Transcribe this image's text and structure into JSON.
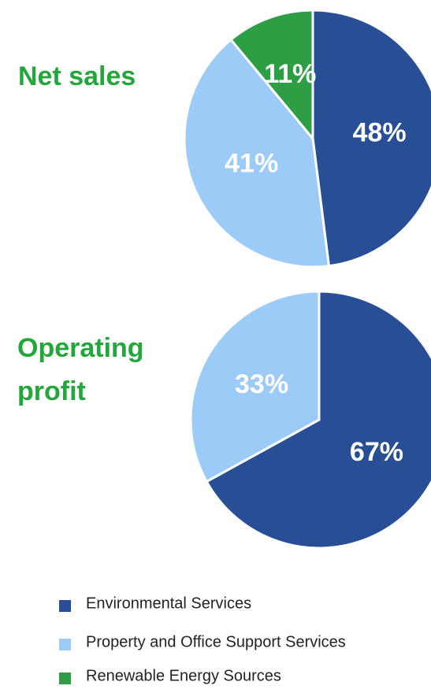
{
  "chart_data": [
    {
      "type": "pie",
      "title": "Net sales",
      "categories": [
        "Environmental Services",
        "Property and Office Support Services",
        "Renewable Energy Sources"
      ],
      "values": [
        48,
        41,
        11
      ],
      "value_labels": [
        "48%",
        "41%",
        "11%"
      ],
      "colors": [
        "#284f96",
        "#9dcbf8",
        "#2e9e44"
      ]
    },
    {
      "type": "pie",
      "title": "Operating profit",
      "values": [
        67,
        33
      ],
      "value_labels": [
        "67%",
        "33%"
      ],
      "colors": [
        "#284f96",
        "#9dcbf8"
      ]
    }
  ]
}
